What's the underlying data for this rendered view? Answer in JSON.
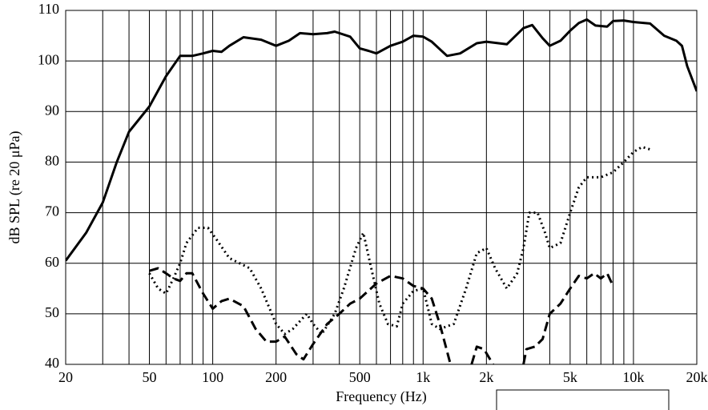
{
  "chart_data": {
    "type": "line",
    "xlabel": "Frequency (Hz)",
    "ylabel": "dB SPL (re 20 μPa)",
    "xscale": "log",
    "xlim": [
      20,
      20000
    ],
    "ylim": [
      40,
      110
    ],
    "xticks": [
      20,
      50,
      100,
      200,
      500,
      {
        "value": 1000,
        "label": "1k"
      },
      {
        "value": 2000,
        "label": "2k"
      },
      {
        "value": 5000,
        "label": "5k"
      },
      {
        "value": 10000,
        "label": "10k"
      },
      {
        "value": 20000,
        "label": "20k"
      }
    ],
    "xgrid": [
      30,
      40,
      60,
      70,
      80,
      90,
      300,
      400,
      600,
      700,
      800,
      900,
      3000,
      4000,
      6000,
      7000,
      8000,
      9000
    ],
    "yticks": [
      40,
      50,
      60,
      70,
      80,
      90,
      100,
      110
    ],
    "grid": true,
    "series": [
      {
        "color": "#000000",
        "style": "solid",
        "x": [
          20,
          25,
          30,
          35,
          40,
          50,
          60,
          70,
          80,
          90,
          100,
          110,
          120,
          140,
          170,
          200,
          230,
          260,
          300,
          350,
          380,
          450,
          500,
          550,
          600,
          700,
          800,
          900,
          1000,
          1100,
          1300,
          1500,
          1800,
          2000,
          2500,
          3000,
          3300,
          3700,
          4000,
          4500,
          5000,
          5500,
          6000,
          6600,
          7500,
          8000,
          9000,
          10000,
          12000,
          14000,
          16000,
          17000,
          18000,
          20000
        ],
        "values": [
          60.5,
          66,
          72,
          80,
          86,
          91,
          97,
          101,
          101,
          101.5,
          102,
          101.8,
          103,
          104.7,
          104.2,
          103,
          104,
          105.5,
          105.3,
          105.5,
          105.8,
          104.8,
          102.5,
          102,
          101.5,
          103,
          103.8,
          105,
          104.8,
          103.8,
          101,
          101.5,
          103.5,
          103.8,
          103.3,
          106.5,
          107.1,
          104.5,
          103,
          104,
          106,
          107.5,
          108.2,
          107,
          106.8,
          107.9,
          108,
          107.7,
          107.4,
          105,
          104,
          103,
          99,
          94
        ]
      },
      {
        "color": "#000000",
        "style": "dotted",
        "x": [
          50,
          55,
          60,
          65,
          70,
          75,
          85,
          95,
          105,
          120,
          150,
          170,
          200,
          220,
          240,
          280,
          300,
          330,
          380,
          420,
          480,
          520,
          560,
          620,
          680,
          750,
          800,
          900,
          1000,
          1100,
          1200,
          1400,
          1600,
          1800,
          2000,
          2200,
          2500,
          2800,
          3000,
          3200,
          3500,
          3800,
          4000,
          4500,
          5000,
          5500,
          6000,
          7000,
          8000,
          9000,
          10000,
          11000,
          12000
        ],
        "values": [
          58,
          55,
          54,
          57,
          60,
          64,
          67,
          67,
          64.5,
          61,
          59,
          55,
          48,
          46,
          47,
          50,
          48,
          46,
          50,
          55,
          63,
          66,
          60,
          52,
          48,
          47.5,
          52,
          54.5,
          55,
          48,
          47,
          48,
          55,
          62,
          63,
          59,
          55,
          58,
          63,
          70,
          70,
          66,
          63,
          64,
          70,
          75,
          77,
          77,
          78,
          80,
          82,
          83,
          82.5
        ]
      },
      {
        "color": "#000000",
        "style": "dashed",
        "x": [
          50,
          55,
          60,
          65,
          70,
          75,
          80,
          90,
          100,
          110,
          120,
          140,
          160,
          180,
          200,
          220,
          250,
          270,
          300,
          350,
          400,
          450,
          500,
          600,
          700,
          800,
          900,
          1000,
          1100,
          1200,
          1350,
          1500,
          1700,
          1800,
          1950,
          2150,
          2500,
          3000,
          3100,
          3400,
          3700,
          4000,
          4500,
          5000,
          5500,
          6000,
          6500,
          7000,
          7500,
          8000
        ],
        "values": [
          58.5,
          59,
          58,
          57,
          56.5,
          58,
          58,
          54,
          51,
          52.5,
          53,
          51.5,
          47,
          44.5,
          44.5,
          45.5,
          42,
          41,
          44,
          48,
          50,
          52,
          53,
          56,
          57.5,
          57,
          55.5,
          55,
          53,
          48,
          40,
          null,
          40,
          43.5,
          43,
          40,
          null,
          40,
          43,
          43.5,
          45,
          50,
          52,
          55,
          57.5,
          57,
          58,
          57,
          58,
          55.5
        ]
      }
    ]
  }
}
